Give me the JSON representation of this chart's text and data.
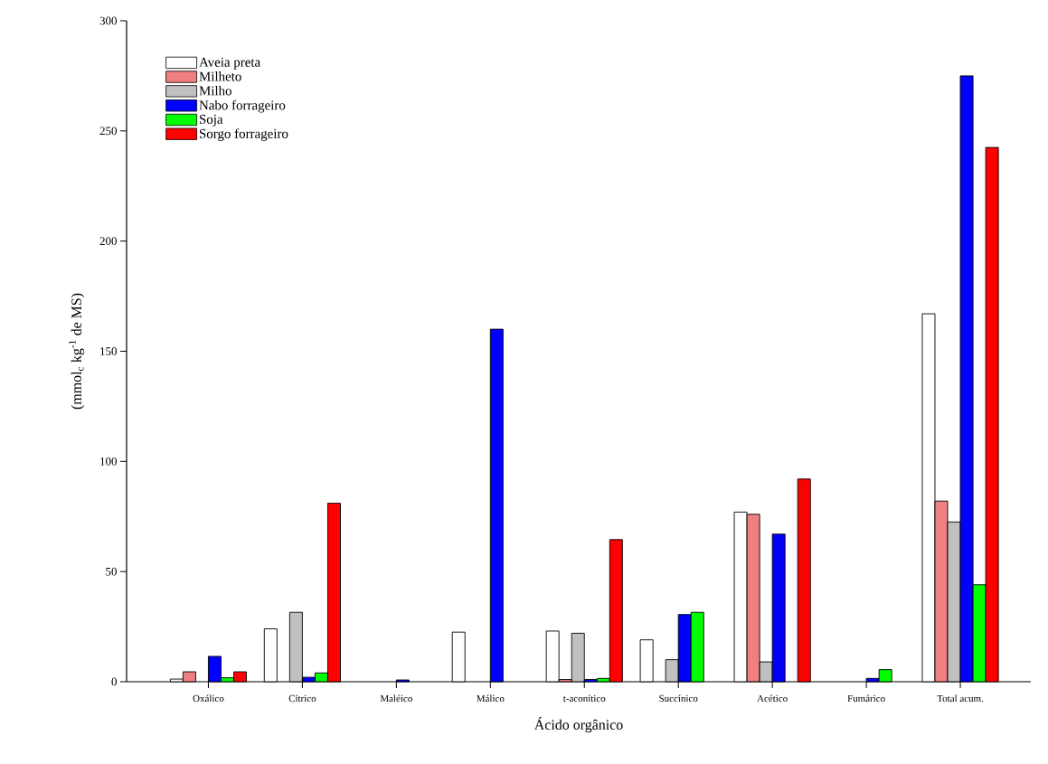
{
  "chart_data": {
    "type": "bar",
    "xlabel": "Ácido orgânico",
    "ylabel": "(mmol$_{c}$ kg$^{-1}$ de MS)",
    "categories": [
      "Oxálico",
      "Cítrico",
      "Maléico",
      "Málico",
      "t-aconítico",
      "Succínico",
      "Acético",
      "Fumárico",
      "Total acum."
    ],
    "series": [
      {
        "name": "Aveia preta",
        "color": "#ffffff",
        "values": [
          1.2,
          24,
          null,
          22.5,
          23,
          19,
          77,
          null,
          167
        ]
      },
      {
        "name": "Milheto",
        "color": "#f08080",
        "values": [
          4.5,
          null,
          null,
          null,
          1,
          null,
          76,
          null,
          82
        ]
      },
      {
        "name": "Milho",
        "color": "#c0c0c0",
        "values": [
          null,
          31.5,
          null,
          null,
          22,
          10,
          9,
          null,
          72.5
        ]
      },
      {
        "name": "Nabo forrageiro",
        "color": "#0000ff",
        "values": [
          11.5,
          2,
          0.8,
          160,
          1,
          30.5,
          67,
          1.5,
          275
        ]
      },
      {
        "name": "Soja",
        "color": "#00ff00",
        "values": [
          1.8,
          4,
          null,
          null,
          1.5,
          31.5,
          null,
          5.5,
          44
        ]
      },
      {
        "name": "Sorgo forrageiro",
        "color": "#ff0000",
        "values": [
          4.5,
          81,
          null,
          null,
          64.5,
          null,
          92,
          null,
          242.5
        ]
      }
    ],
    "ylim": [
      0,
      300
    ],
    "yticks": [
      0,
      50,
      100,
      150,
      200,
      250,
      300
    ],
    "grid": false,
    "legend": "top left"
  }
}
